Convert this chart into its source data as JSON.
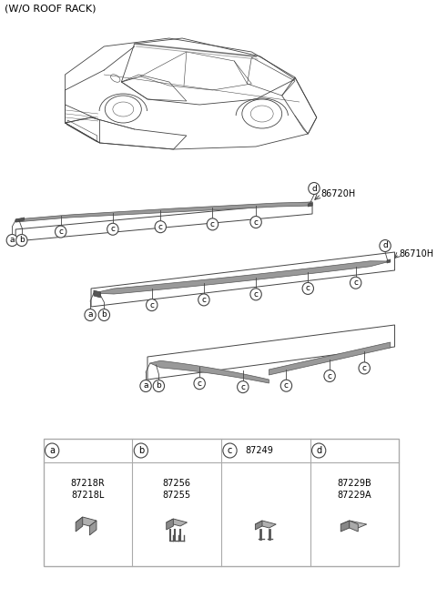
{
  "title": "(W/O ROOF RACK)",
  "bg_color": "#ffffff",
  "label_86720H": "86720H",
  "label_86710H": "86710H",
  "parts_a": "87218R\n87218L",
  "parts_b": "87256\n87255",
  "parts_c": "87249",
  "parts_d": "87229B\n87229A",
  "callout_letters": [
    "a",
    "b",
    "c",
    "d"
  ],
  "line_color": "#444444",
  "strip_gray": "#999999",
  "strip_light": "#c8c8c8",
  "strip_dark": "#555555",
  "box_border": "#888888",
  "table_border": "#aaaaaa"
}
